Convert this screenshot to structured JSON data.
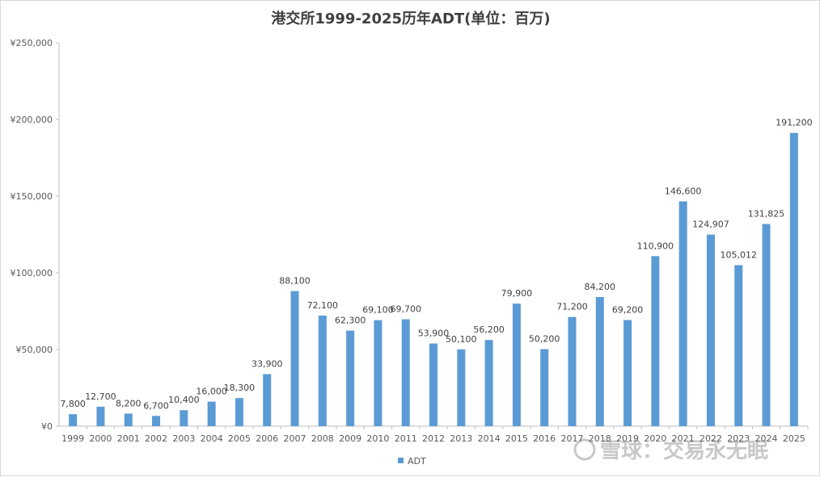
{
  "title": "港交所1999-2025历年ADT(单位：百万)",
  "watermark": "雪球：交易永无眠",
  "chart_data": {
    "type": "bar",
    "title": "港交所1999-2025历年ADT(单位：百万)",
    "categories": [
      "1999",
      "2000",
      "2001",
      "2002",
      "2003",
      "2004",
      "2005",
      "2006",
      "2007",
      "2008",
      "2009",
      "2010",
      "2011",
      "2012",
      "2013",
      "2014",
      "2015",
      "2016",
      "2017",
      "2018",
      "2019",
      "2020",
      "2021",
      "2022",
      "2023",
      "2024",
      "2025"
    ],
    "series": [
      {
        "name": "ADT",
        "color": "#5b9bd5",
        "values": [
          7800,
          12700,
          8200,
          6700,
          10400,
          16000,
          18300,
          33900,
          88100,
          72100,
          62300,
          69100,
          69700,
          53900,
          50100,
          56200,
          79900,
          50200,
          71200,
          84200,
          69200,
          110900,
          146600,
          124907,
          105012,
          131825,
          191200
        ],
        "labels": [
          "7,800",
          "12,700",
          "8,200",
          "6,700",
          "10,400",
          "16,000",
          "18,300",
          "33,900",
          "88,100",
          "72,100",
          "62,300",
          "69,100",
          "69,700",
          "53,900",
          "50,100",
          "56,200",
          "79,900",
          "50,200",
          "71,200",
          "84,200",
          "69,200",
          "110,900",
          "146,600",
          "124,907",
          "105,012",
          "131,825",
          "191,200"
        ]
      }
    ],
    "ylim": [
      0,
      250000
    ],
    "yticks": [
      0,
      50000,
      100000,
      150000,
      200000,
      250000
    ],
    "ytick_labels": [
      "¥0",
      "¥50,000",
      "¥100,000",
      "¥150,000",
      "¥200,000",
      "¥250,000"
    ],
    "legend_position": "bottom",
    "grid": false
  }
}
